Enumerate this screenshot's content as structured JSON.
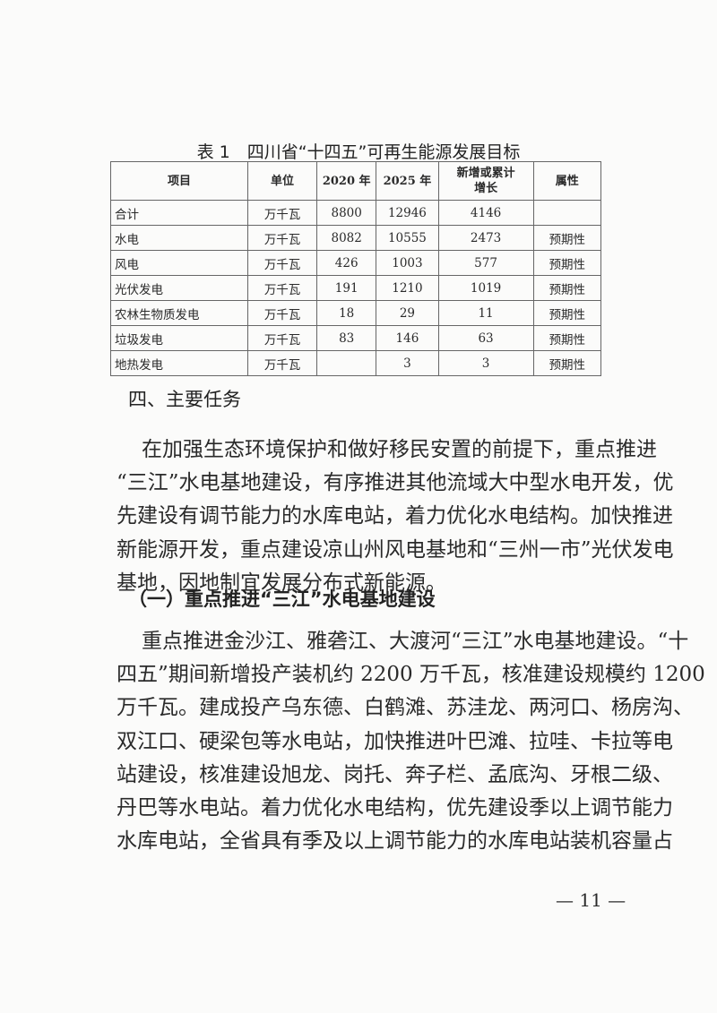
{
  "table": {
    "title": "表 1　四川省“十四五”可再生能源发展目标",
    "headers": [
      "项目",
      "单位",
      "2020 年",
      "2025 年",
      "新增或累计增长",
      "属性"
    ],
    "rows": [
      [
        "合计",
        "万千瓦",
        "8800",
        "12946",
        "4146",
        ""
      ],
      [
        "水电",
        "万千瓦",
        "8082",
        "10555",
        "2473",
        "预期性"
      ],
      [
        "风电",
        "万千瓦",
        "426",
        "1003",
        "577",
        "预期性"
      ],
      [
        "光伏发电",
        "万千瓦",
        "191",
        "1210",
        "1019",
        "预期性"
      ],
      [
        "农林生物质发电",
        "万千瓦",
        "18",
        "29",
        "11",
        "预期性"
      ],
      [
        "垃圾发电",
        "万千瓦",
        "83",
        "146",
        "63",
        "预期性"
      ],
      [
        "地热发电",
        "万千瓦",
        "",
        "3",
        "3",
        "预期性"
      ]
    ]
  },
  "section_heading": "四、主要任务",
  "paragraph1": [
    "在加强生态环境保护和做好移民安置的前提下，重点推进",
    "“三江”水电基地建设，有序推进其他流域大中型水电开发，优",
    "先建设有调节能力的水库电站，着力优化水电结构。加快推进",
    "新能源开发，重点建设凉山州风电基地和“三州一市”光伏发电",
    "基地，因地制宜发展分布式新能源。"
  ],
  "subsection_heading": "（一）重点推进“三江”水电基地建设",
  "paragraph2": [
    "重点推进金沙江、雅砻江、大渡河“三江”水电基地建设。“十",
    "四五”期间新增投产装机约 2200 万千瓦，核准建设规模约 1200",
    "万千瓦。建成投产乌东德、白鹤滩、苏洼龙、两河口、杨房沟、",
    "双江口、硬梁包等水电站，加快推进叶巴滩、拉哇、卡拉等电",
    "站建设，核准建设旭龙、岗托、奔子栏、孟底沟、牙根二级、",
    "丹巴等水电站。着力优化水电结构，优先建设季以上调节能力",
    "水库电站，全省具有季及以上调节能力的水库电站装机容量占"
  ],
  "page_number": "— 11 —"
}
